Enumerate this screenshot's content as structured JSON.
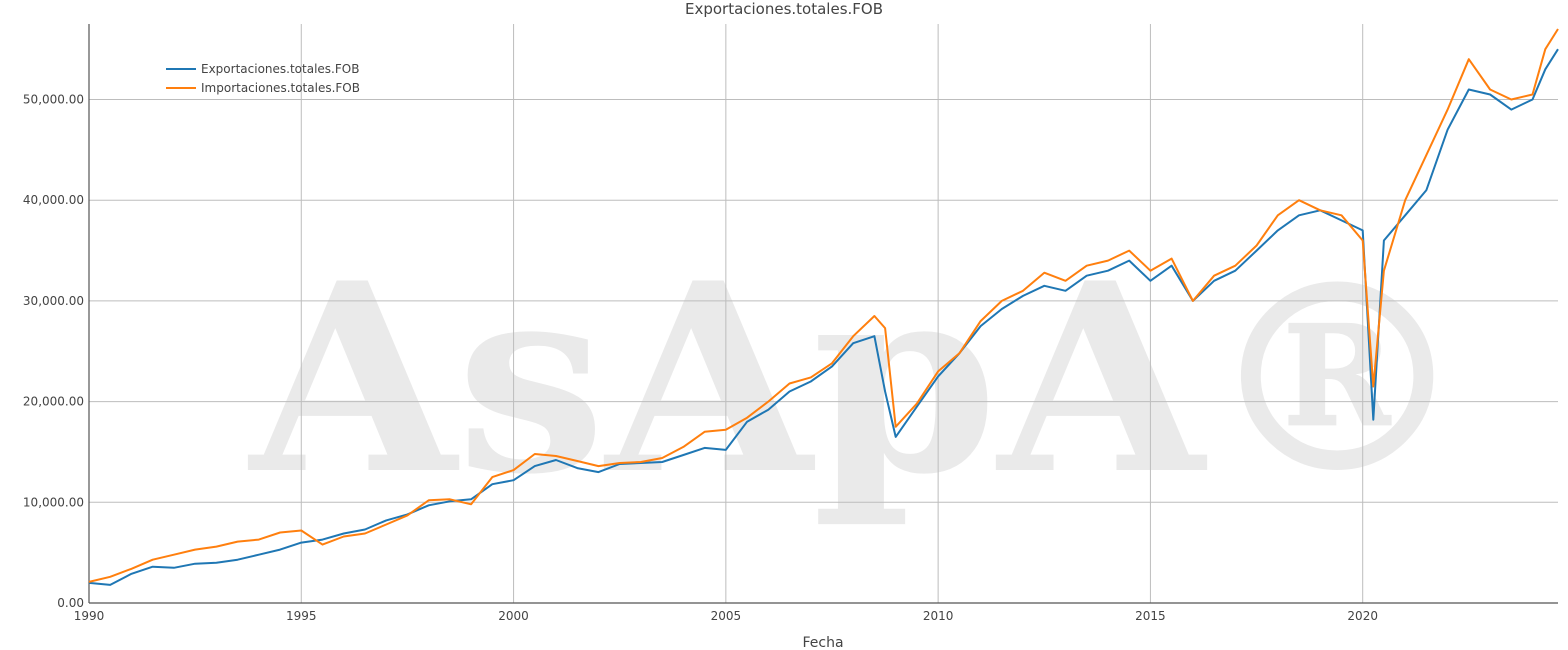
{
  "chart_data": {
    "type": "line",
    "title": "Exportaciones.totales.FOB",
    "xlabel": "Fecha",
    "ylabel": "",
    "xlim": [
      1990.0,
      2024.6
    ],
    "ylim": [
      0,
      57500
    ],
    "x_ticks": [
      1990,
      1995,
      2000,
      2005,
      2010,
      2015,
      2020
    ],
    "x_tick_labels": [
      "1990",
      "1995",
      "2000",
      "2005",
      "2010",
      "2015",
      "2020"
    ],
    "y_ticks": [
      0,
      10000,
      20000,
      30000,
      40000,
      50000
    ],
    "y_tick_labels": [
      "0.00",
      "10,000.00",
      "20,000.00",
      "30,000.00",
      "40,000.00",
      "50,000.00"
    ],
    "grid": true,
    "legend_position": "top-left",
    "watermark": "AsApA®",
    "series": [
      {
        "name": "Exportaciones.totales.FOB",
        "color": "#1f77b4",
        "x": [
          1990.0,
          1990.5,
          1991.0,
          1991.5,
          1992.0,
          1992.5,
          1993.0,
          1993.5,
          1994.0,
          1994.5,
          1995.0,
          1995.5,
          1996.0,
          1996.5,
          1997.0,
          1997.5,
          1998.0,
          1998.5,
          1999.0,
          1999.5,
          2000.0,
          2000.5,
          2001.0,
          2001.5,
          2002.0,
          2002.5,
          2003.0,
          2003.5,
          2004.0,
          2004.5,
          2005.0,
          2005.5,
          2006.0,
          2006.5,
          2007.0,
          2007.5,
          2008.0,
          2008.5,
          2008.75,
          2009.0,
          2009.5,
          2010.0,
          2010.5,
          2011.0,
          2011.5,
          2012.0,
          2012.5,
          2013.0,
          2013.5,
          2014.0,
          2014.5,
          2015.0,
          2015.5,
          2016.0,
          2016.5,
          2017.0,
          2017.5,
          2018.0,
          2018.5,
          2019.0,
          2019.5,
          2020.0,
          2020.25,
          2020.5,
          2021.0,
          2021.5,
          2022.0,
          2022.5,
          2023.0,
          2023.5,
          2024.0,
          2024.3,
          2024.6
        ],
        "y": [
          2000,
          1800,
          2900,
          3600,
          3500,
          3900,
          4000,
          4300,
          4800,
          5300,
          6000,
          6300,
          6900,
          7300,
          8200,
          8800,
          9700,
          10100,
          10300,
          11800,
          12200,
          13600,
          14200,
          13400,
          13000,
          13800,
          13900,
          14000,
          14700,
          15400,
          15200,
          18000,
          19200,
          21000,
          22000,
          23500,
          25800,
          26500,
          21000,
          16500,
          19500,
          22500,
          24800,
          27500,
          29200,
          30500,
          31500,
          31000,
          32500,
          33000,
          34000,
          32000,
          33500,
          30000,
          32000,
          33000,
          35000,
          37000,
          38500,
          39000,
          38000,
          37000,
          18200,
          36000,
          38500,
          41000,
          47000,
          51000,
          50500,
          49000,
          50000,
          53000,
          55000
        ]
      },
      {
        "name": "Importaciones.totales.FOB",
        "color": "#ff7f0e",
        "x": [
          1990.0,
          1990.5,
          1991.0,
          1991.5,
          1992.0,
          1992.5,
          1993.0,
          1993.5,
          1994.0,
          1994.5,
          1995.0,
          1995.5,
          1996.0,
          1996.5,
          1997.0,
          1997.5,
          1998.0,
          1998.5,
          1999.0,
          1999.5,
          2000.0,
          2000.5,
          2001.0,
          2001.5,
          2002.0,
          2002.5,
          2003.0,
          2003.5,
          2004.0,
          2004.5,
          2005.0,
          2005.5,
          2006.0,
          2006.5,
          2007.0,
          2007.5,
          2008.0,
          2008.5,
          2008.75,
          2009.0,
          2009.5,
          2010.0,
          2010.5,
          2011.0,
          2011.5,
          2012.0,
          2012.5,
          2013.0,
          2013.5,
          2014.0,
          2014.5,
          2015.0,
          2015.5,
          2016.0,
          2016.5,
          2017.0,
          2017.5,
          2018.0,
          2018.5,
          2019.0,
          2019.5,
          2020.0,
          2020.25,
          2020.5,
          2021.0,
          2021.5,
          2022.0,
          2022.5,
          2023.0,
          2023.5,
          2024.0,
          2024.3,
          2024.6
        ],
        "y": [
          2100,
          2600,
          3400,
          4300,
          4800,
          5300,
          5600,
          6100,
          6300,
          7000,
          7200,
          5800,
          6600,
          6900,
          7800,
          8700,
          10200,
          10300,
          9800,
          12500,
          13200,
          14800,
          14600,
          14100,
          13600,
          13900,
          14000,
          14400,
          15500,
          17000,
          17200,
          18400,
          20000,
          21800,
          22400,
          23800,
          26500,
          28500,
          27300,
          17500,
          19800,
          23000,
          24800,
          28000,
          30000,
          31000,
          32800,
          32000,
          33500,
          34000,
          35000,
          33000,
          34200,
          30000,
          32500,
          33500,
          35500,
          38500,
          40000,
          39000,
          38500,
          36000,
          21500,
          33000,
          40000,
          44500,
          49000,
          54000,
          51000,
          50000,
          50500,
          55000,
          57000
        ]
      }
    ]
  }
}
